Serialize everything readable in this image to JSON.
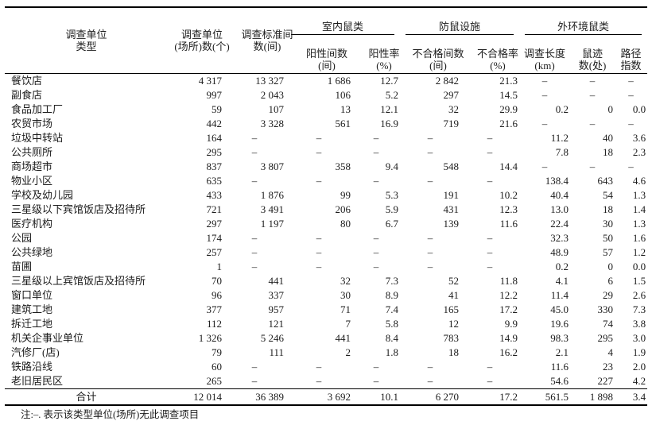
{
  "page": {
    "background": "#ffffff",
    "text_color": "#1c1c1c"
  },
  "table": {
    "header": {
      "unit_type": "调查单位\n类型",
      "unit_count": "调查单位\n(场所)数(个)",
      "standard_rooms": "调查标准间\n数(间)"
    },
    "groups": [
      {
        "label": "室内鼠类",
        "cols": [
          "阳性间数\n(间)",
          "阳性率\n(%)"
        ]
      },
      {
        "label": "防鼠设施",
        "cols": [
          "不合格间数\n(间)",
          "不合格率\n(%)"
        ]
      },
      {
        "label": "外环境鼠类",
        "cols": [
          "调查长度\n(km)",
          "鼠迹\n数(处)",
          "路径\n指数"
        ]
      }
    ],
    "rows": [
      {
        "type": "餐饮店",
        "values": [
          "4 317",
          "13 327",
          "1 686",
          "12.7",
          "2 842",
          "21.3",
          "–",
          "–",
          "–"
        ]
      },
      {
        "type": "副食店",
        "values": [
          "997",
          "2 043",
          "106",
          "5.2",
          "297",
          "14.5",
          "–",
          "–",
          "–"
        ]
      },
      {
        "type": "食品加工厂",
        "values": [
          "59",
          "107",
          "13",
          "12.1",
          "32",
          "29.9",
          "0.2",
          "0",
          "0.0"
        ]
      },
      {
        "type": "农贸市场",
        "values": [
          "442",
          "3 328",
          "561",
          "16.9",
          "719",
          "21.6",
          "–",
          "–",
          "–"
        ]
      },
      {
        "type": "垃圾中转站",
        "values": [
          "164",
          "–",
          "–",
          "–",
          "–",
          "–",
          "11.2",
          "40",
          "3.6"
        ]
      },
      {
        "type": "公共厕所",
        "values": [
          "295",
          "–",
          "–",
          "–",
          "–",
          "–",
          "7.8",
          "18",
          "2.3"
        ]
      },
      {
        "type": "商场超市",
        "values": [
          "837",
          "3 807",
          "358",
          "9.4",
          "548",
          "14.4",
          "–",
          "–",
          "–"
        ]
      },
      {
        "type": "物业小区",
        "values": [
          "635",
          "–",
          "–",
          "–",
          "–",
          "–",
          "138.4",
          "643",
          "4.6"
        ]
      },
      {
        "type": "学校及幼儿园",
        "values": [
          "433",
          "1 876",
          "99",
          "5.3",
          "191",
          "10.2",
          "40.4",
          "54",
          "1.3"
        ]
      },
      {
        "type": "三星级以下宾馆饭店及招待所",
        "values": [
          "721",
          "3 491",
          "206",
          "5.9",
          "431",
          "12.3",
          "13.0",
          "18",
          "1.4"
        ]
      },
      {
        "type": "医疗机构",
        "values": [
          "297",
          "1 197",
          "80",
          "6.7",
          "139",
          "11.6",
          "22.4",
          "30",
          "1.3"
        ]
      },
      {
        "type": "公园",
        "values": [
          "174",
          "–",
          "–",
          "–",
          "–",
          "–",
          "32.3",
          "50",
          "1.6"
        ]
      },
      {
        "type": "公共绿地",
        "values": [
          "257",
          "–",
          "–",
          "–",
          "–",
          "–",
          "48.9",
          "57",
          "1.2"
        ]
      },
      {
        "type": "苗圃",
        "values": [
          "1",
          "–",
          "–",
          "–",
          "–",
          "–",
          "0.2",
          "0",
          "0.0"
        ]
      },
      {
        "type": "三星级以上宾馆饭店及招待所",
        "values": [
          "70",
          "441",
          "32",
          "7.3",
          "52",
          "11.8",
          "4.1",
          "6",
          "1.5"
        ]
      },
      {
        "type": "窗口单位",
        "values": [
          "96",
          "337",
          "30",
          "8.9",
          "41",
          "12.2",
          "11.4",
          "29",
          "2.6"
        ]
      },
      {
        "type": "建筑工地",
        "values": [
          "377",
          "957",
          "71",
          "7.4",
          "165",
          "17.2",
          "45.0",
          "330",
          "7.3"
        ]
      },
      {
        "type": "拆迁工地",
        "values": [
          "112",
          "121",
          "7",
          "5.8",
          "12",
          "9.9",
          "19.6",
          "74",
          "3.8"
        ]
      },
      {
        "type": "机关企事业单位",
        "values": [
          "1 326",
          "5 246",
          "441",
          "8.4",
          "783",
          "14.9",
          "98.3",
          "295",
          "3.0"
        ]
      },
      {
        "type": "汽修厂(店)",
        "values": [
          "79",
          "111",
          "2",
          "1.8",
          "18",
          "16.2",
          "2.1",
          "4",
          "1.9"
        ]
      },
      {
        "type": "铁路沿线",
        "values": [
          "60",
          "–",
          "–",
          "–",
          "–",
          "–",
          "11.6",
          "23",
          "2.0"
        ]
      },
      {
        "type": "老旧居民区",
        "values": [
          "265",
          "–",
          "–",
          "–",
          "–",
          "–",
          "54.6",
          "227",
          "4.2"
        ]
      }
    ],
    "total": {
      "label": "合计",
      "values": [
        "12 014",
        "36 389",
        "3 692",
        "10.1",
        "6 270",
        "17.2",
        "561.5",
        "1 898",
        "3.4"
      ]
    },
    "note": "注:–. 表示该类型单位(场所)无此调查项目"
  }
}
